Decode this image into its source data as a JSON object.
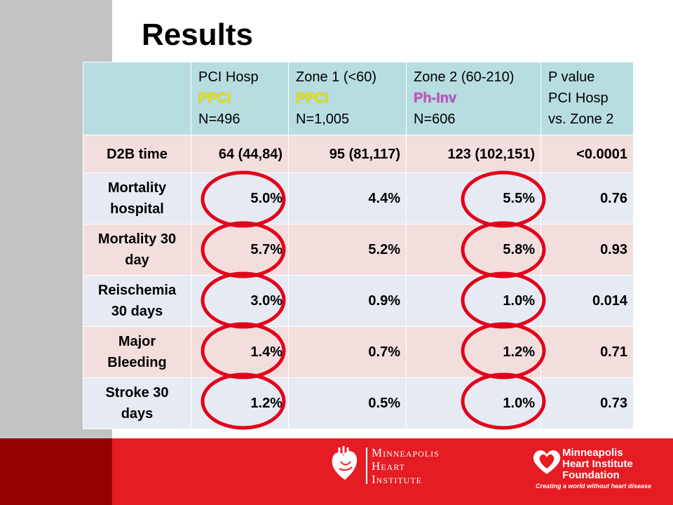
{
  "slide": {
    "title": "Results"
  },
  "table": {
    "header": {
      "col1": {
        "line1": "PCI Hosp",
        "sub": "PPCI",
        "line3": "N=496"
      },
      "col2": {
        "line1": "Zone 1 (<60)",
        "sub": "PPCI",
        "line3": "N=1,005"
      },
      "col3": {
        "line1": "Zone 2 (60-210)",
        "sub": "Ph-Inv",
        "line3": "N=606"
      },
      "col4": {
        "line1": "P value",
        "line2": "PCI Hosp",
        "line3": "vs. Zone 2"
      }
    },
    "rows": [
      {
        "label": "D2B time",
        "pci": "64 (44,84)",
        "zone1": "95 (81,117)",
        "zone2": "123 (102,151)",
        "p": "<0.0001"
      },
      {
        "label": "Mortality hospital",
        "pci": "5.0%",
        "zone1": "4.4%",
        "zone2": "5.5%",
        "p": "0.76"
      },
      {
        "label": "Mortality 30 day",
        "pci": "5.7%",
        "zone1": "5.2%",
        "zone2": "5.8%",
        "p": "0.93"
      },
      {
        "label": "Reischemia 30 days",
        "pci": "3.0%",
        "zone1": "0.9%",
        "zone2": "1.0%",
        "p": "0.014"
      },
      {
        "label": "Major Bleeding",
        "pci": "1.4%",
        "zone1": "0.7%",
        "zone2": "1.2%",
        "p": "0.71"
      },
      {
        "label": "Stroke 30 days",
        "pci": "1.2%",
        "zone1": "0.5%",
        "zone2": "1.0%",
        "p": "0.73"
      }
    ]
  },
  "footer": {
    "mhi": {
      "line1": "Minneapolis",
      "line2": "Heart",
      "line3": "Institute"
    },
    "mhif": {
      "line1": "Minneapolis",
      "line2": "Heart Institute",
      "line3": "Foundation",
      "tagline": "Creating a world without heart disease"
    }
  },
  "colors": {
    "header_bg": "#b7dde0",
    "row_pink": "#f3dede",
    "row_blue": "#e6eaf2",
    "footer_red": "#e51c24",
    "footer_dark": "#950000",
    "circle": "#e2001a",
    "ppci_label": "#f2e600",
    "phinv_label": "#c94ec3"
  }
}
